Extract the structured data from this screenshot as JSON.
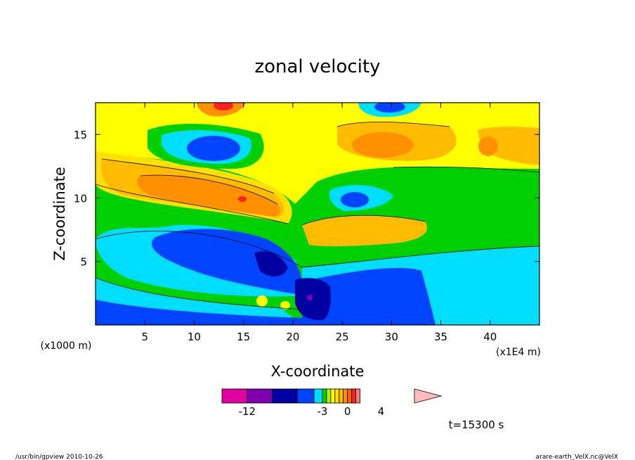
{
  "chart_data": {
    "type": "heatmap",
    "title": "zonal velocity",
    "xlabel": "X-coordinate",
    "ylabel": "Z-coordinate",
    "x_unit": "(x1E4 m)",
    "y_unit": "(x1000 m)",
    "xlim": [
      0,
      45
    ],
    "ylim": [
      0,
      17.5
    ],
    "x_ticks": [
      5,
      10,
      15,
      20,
      25,
      30,
      35,
      40
    ],
    "y_ticks": [
      5,
      10,
      15
    ],
    "colorbar": {
      "levels": [
        -15,
        -12,
        -9,
        -6,
        -4,
        -3,
        -2.5,
        -2,
        -1.5,
        -1,
        -0.5,
        0,
        0.5,
        1,
        1.5,
        2,
        3,
        4,
        6,
        8
      ],
      "colors": [
        "#e000a0",
        "#8000b0",
        "#0000a0",
        "#0044ff",
        "#00ddff",
        "#00d000",
        "#b0f000",
        "#ffff00",
        "#ffe000",
        "#ffbb00",
        "#ff9000",
        "#ff6000",
        "#ff2020",
        "#ff7777",
        "#ffbbbb"
      ],
      "tick_labels": [
        {
          "text": "-12",
          "level": -12
        },
        {
          "text": "-3",
          "level": -3
        },
        {
          "text": "0",
          "level": 0
        },
        {
          "text": "4",
          "level": 4
        }
      ]
    },
    "field_sketch": [
      {
        "x": 3.5,
        "z": 15.6,
        "value": -2.5
      },
      {
        "x": 11,
        "z": 14.5,
        "value": -6
      },
      {
        "x": 13,
        "z": 17.2,
        "value": 4
      },
      {
        "x": 11,
        "z": 10.8,
        "value": 3
      },
      {
        "x": 2.3,
        "z": 12.2,
        "value": 2
      },
      {
        "x": 15,
        "z": 10,
        "value": 4
      },
      {
        "x": 5,
        "z": 8,
        "value": -2
      },
      {
        "x": 8,
        "z": 6.5,
        "value": -4
      },
      {
        "x": 16,
        "z": 5.5,
        "value": -5
      },
      {
        "x": 22,
        "z": 2,
        "value": -7
      },
      {
        "x": 30,
        "z": 14,
        "value": 3
      },
      {
        "x": 27,
        "z": 6.5,
        "value": 1.5
      },
      {
        "x": 25.5,
        "z": 9.5,
        "value": -3
      },
      {
        "x": 37,
        "z": 11,
        "value": -1
      },
      {
        "x": 40,
        "z": 14,
        "value": 1.5
      },
      {
        "x": 41,
        "z": 5,
        "value": -2.5
      },
      {
        "x": 10,
        "z": 1.5,
        "value": -4.5
      },
      {
        "x": 30,
        "z": 2.5,
        "value": -4
      }
    ]
  },
  "annotations": {
    "time_label": "t=15300 s",
    "footer_left": "/usr/bin/gpview   2010-10-26",
    "footer_right": "arare-earth_VelX.nc@VelX"
  }
}
